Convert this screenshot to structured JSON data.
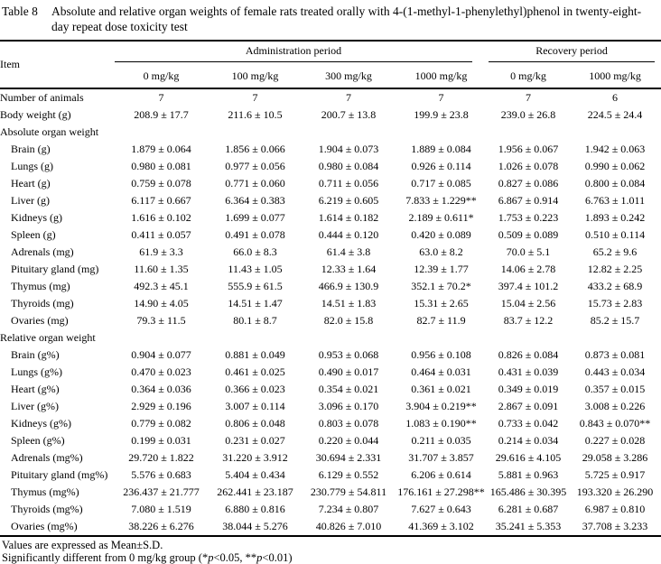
{
  "title": {
    "label": "Table 8",
    "text": "Absolute and relative organ weights of female rats treated orally with 4-(1-methyl-1-phenylethyl)phenol in twenty-eight-day repeat dose toxicity test"
  },
  "table": {
    "item_header": "Item",
    "groups": [
      {
        "label": "Administration period",
        "cols": 4
      },
      {
        "label": "Recovery period",
        "cols": 2
      }
    ],
    "dose_headers": [
      "0 mg/kg",
      "100 mg/kg",
      "300 mg/kg",
      "1000 mg/kg",
      "0 mg/kg",
      "1000 mg/kg"
    ],
    "rows": [
      {
        "label": "Number of animals",
        "indent": false,
        "section": false,
        "values": [
          "7",
          "7",
          "7",
          "7",
          "7",
          "6"
        ]
      },
      {
        "label": "Body weight (g)",
        "indent": false,
        "section": false,
        "values": [
          "208.9 ± 17.7",
          "211.6 ± 10.5",
          "200.7 ± 13.8",
          "199.9 ± 23.8",
          "239.0 ± 26.8",
          "224.5 ± 24.4"
        ]
      },
      {
        "label": "Absolute organ weight",
        "indent": false,
        "section": true,
        "values": []
      },
      {
        "label": "Brain (g)",
        "indent": true,
        "section": false,
        "values": [
          "1.879 ± 0.064",
          "1.856 ± 0.066",
          "1.904 ± 0.073",
          "1.889 ± 0.084",
          "1.956 ± 0.067",
          "1.942 ± 0.063"
        ]
      },
      {
        "label": "Lungs (g)",
        "indent": true,
        "section": false,
        "values": [
          "0.980 ± 0.081",
          "0.977 ± 0.056",
          "0.980 ± 0.084",
          "0.926 ± 0.114",
          "1.026 ± 0.078",
          "0.990 ± 0.062"
        ]
      },
      {
        "label": "Heart (g)",
        "indent": true,
        "section": false,
        "values": [
          "0.759 ± 0.078",
          "0.771 ± 0.060",
          "0.711 ± 0.056",
          "0.717 ± 0.085",
          "0.827 ± 0.086",
          "0.800 ± 0.084"
        ]
      },
      {
        "label": "Liver (g)",
        "indent": true,
        "section": false,
        "values": [
          "6.117 ± 0.667",
          "6.364 ± 0.383",
          "6.219 ± 0.605",
          "7.833 ± 1.229**",
          "6.867 ± 0.914",
          "6.763 ± 1.011"
        ]
      },
      {
        "label": "Kidneys (g)",
        "indent": true,
        "section": false,
        "values": [
          "1.616 ± 0.102",
          "1.699 ± 0.077",
          "1.614 ± 0.182",
          "2.189 ± 0.611*",
          "1.753 ± 0.223",
          "1.893 ± 0.242"
        ]
      },
      {
        "label": "Spleen (g)",
        "indent": true,
        "section": false,
        "values": [
          "0.411 ± 0.057",
          "0.491 ± 0.078",
          "0.444 ± 0.120",
          "0.420 ± 0.089",
          "0.509 ± 0.089",
          "0.510 ± 0.114"
        ]
      },
      {
        "label": "Adrenals (mg)",
        "indent": true,
        "section": false,
        "values": [
          "61.9 ± 3.3",
          "66.0 ± 8.3",
          "61.4 ± 3.8",
          "63.0 ± 8.2",
          "70.0 ± 5.1",
          "65.2 ± 9.6"
        ]
      },
      {
        "label": "Pituitary gland (mg)",
        "indent": true,
        "section": false,
        "values": [
          "11.60 ± 1.35",
          "11.43 ± 1.05",
          "12.33 ± 1.64",
          "12.39 ± 1.77",
          "14.06 ± 2.78",
          "12.82 ± 2.25"
        ]
      },
      {
        "label": "Thymus (mg)",
        "indent": true,
        "section": false,
        "values": [
          "492.3 ± 45.1",
          "555.9 ± 61.5",
          "466.9 ± 130.9",
          "352.1 ± 70.2*",
          "397.4 ± 101.2",
          "433.2 ± 68.9"
        ]
      },
      {
        "label": "Thyroids (mg)",
        "indent": true,
        "section": false,
        "values": [
          "14.90 ± 4.05",
          "14.51 ± 1.47",
          "14.51 ± 1.83",
          "15.31 ± 2.65",
          "15.04 ± 2.56",
          "15.73 ± 2.83"
        ]
      },
      {
        "label": "Ovaries (mg)",
        "indent": true,
        "section": false,
        "values": [
          "79.3 ± 11.5",
          "80.1 ± 8.7",
          "82.0 ± 15.8",
          "82.7 ± 11.9",
          "83.7 ± 12.2",
          "85.2 ± 15.7"
        ]
      },
      {
        "label": "Relative organ weight",
        "indent": false,
        "section": true,
        "values": []
      },
      {
        "label": "Brain (g%)",
        "indent": true,
        "section": false,
        "values": [
          "0.904 ± 0.077",
          "0.881 ± 0.049",
          "0.953 ± 0.068",
          "0.956 ± 0.108",
          "0.826 ± 0.084",
          "0.873 ± 0.081"
        ]
      },
      {
        "label": "Lungs (g%)",
        "indent": true,
        "section": false,
        "values": [
          "0.470 ± 0.023",
          "0.461 ± 0.025",
          "0.490 ± 0.017",
          "0.464 ± 0.031",
          "0.431 ± 0.039",
          "0.443 ± 0.034"
        ]
      },
      {
        "label": "Heart (g%)",
        "indent": true,
        "section": false,
        "values": [
          "0.364 ± 0.036",
          "0.366 ± 0.023",
          "0.354 ± 0.021",
          "0.361 ± 0.021",
          "0.349 ± 0.019",
          "0.357 ± 0.015"
        ]
      },
      {
        "label": "Liver (g%)",
        "indent": true,
        "section": false,
        "values": [
          "2.929 ± 0.196",
          "3.007 ± 0.114",
          "3.096 ± 0.170",
          "3.904 ± 0.219**",
          "2.867 ± 0.091",
          "3.008 ± 0.226"
        ]
      },
      {
        "label": "Kidneys (g%)",
        "indent": true,
        "section": false,
        "values": [
          "0.779 ± 0.082",
          "0.806 ± 0.048",
          "0.803 ± 0.078",
          "1.083 ± 0.190**",
          "0.733 ± 0.042",
          "0.843 ± 0.070**"
        ]
      },
      {
        "label": "Spleen (g%)",
        "indent": true,
        "section": false,
        "values": [
          "0.199 ± 0.031",
          "0.231 ± 0.027",
          "0.220 ± 0.044",
          "0.211 ± 0.035",
          "0.214 ± 0.034",
          "0.227 ± 0.028"
        ]
      },
      {
        "label": "Adrenals (mg%)",
        "indent": true,
        "section": false,
        "values": [
          "29.720 ± 1.822",
          "31.220 ± 3.912",
          "30.694 ± 2.331",
          "31.707 ± 3.857",
          "29.616 ± 4.105",
          "29.058 ± 3.286"
        ]
      },
      {
        "label": "Pituitary gland (mg%)",
        "indent": true,
        "section": false,
        "values": [
          "5.576 ± 0.683",
          "5.404 ± 0.434",
          "6.129 ± 0.552",
          "6.206 ± 0.614",
          "5.881 ± 0.963",
          "5.725 ± 0.917"
        ]
      },
      {
        "label": "Thymus (mg%)",
        "indent": true,
        "section": false,
        "values": [
          "236.437 ± 21.777",
          "262.441 ± 23.187",
          "230.779 ± 54.811",
          "176.161 ± 27.298**",
          "165.486 ± 30.395",
          "193.320 ± 26.290"
        ]
      },
      {
        "label": "Thyroids (mg%)",
        "indent": true,
        "section": false,
        "values": [
          "7.080 ± 1.519",
          "6.880 ± 0.816",
          "7.234 ± 0.807",
          "7.627 ± 0.643",
          "6.281 ± 0.687",
          "6.987 ± 0.810"
        ]
      },
      {
        "label": "Ovaries (mg%)",
        "indent": true,
        "section": false,
        "values": [
          "38.226 ± 6.276",
          "38.044 ± 5.276",
          "40.826 ± 7.010",
          "41.369 ± 3.102",
          "35.241 ± 5.353",
          "37.708 ± 3.233"
        ]
      }
    ]
  },
  "footnotes": {
    "line1": "Values are expressed as Mean±S.D.",
    "line2": {
      "pre": "Significantly different from 0 mg/kg group (*",
      "p1": "p",
      "mid": "<0.05, **",
      "p2": "p",
      "post": "<0.01)"
    }
  }
}
